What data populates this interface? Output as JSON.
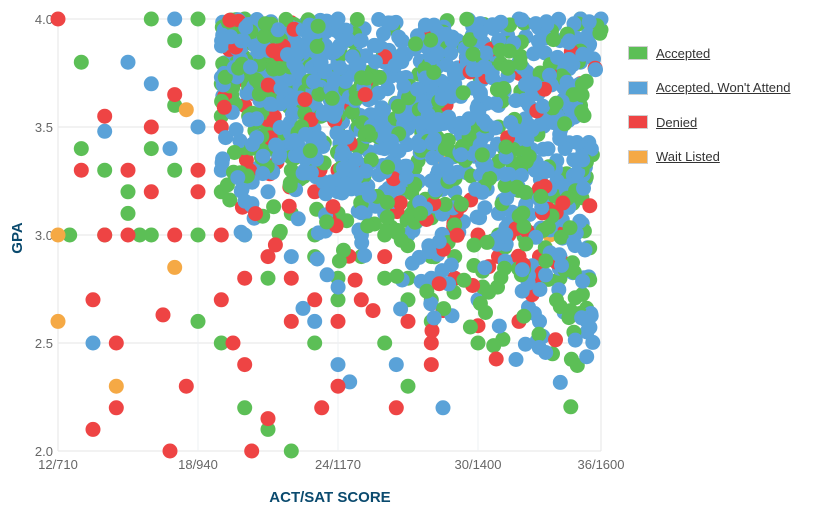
{
  "chart_data": {
    "type": "scatter",
    "title": "",
    "xlabel": "ACT/SAT SCORE",
    "ylabel": "GPA",
    "xlim": [
      12,
      36
    ],
    "ylim": [
      2.0,
      4.0
    ],
    "x_ticks": [
      "12/710",
      "18/940",
      "24/1170",
      "30/1400",
      "36/1600"
    ],
    "y_ticks": [
      "2.0",
      "2.5",
      "3.0",
      "3.5",
      "4.0"
    ],
    "grid": true,
    "legend_position": "right",
    "series": [
      {
        "name": "Accepted",
        "color": "#5cbf56",
        "points": [
          [
            13,
            3.8
          ],
          [
            17,
            3.6
          ],
          [
            19,
            3.55
          ],
          [
            20,
            3.4
          ],
          [
            21,
            3.3
          ],
          [
            22,
            3.1
          ],
          [
            23,
            3.0
          ],
          [
            25,
            2.9
          ],
          [
            26,
            2.8
          ],
          [
            27,
            2.7
          ],
          [
            28,
            2.6
          ],
          [
            29,
            2.8
          ],
          [
            30,
            2.5
          ],
          [
            31,
            3.5
          ],
          [
            32,
            3.3
          ],
          [
            33,
            3.2
          ],
          [
            34,
            2.8
          ],
          [
            35,
            4.0
          ],
          [
            36,
            3.95
          ],
          [
            24,
            3.5
          ],
          [
            22,
            3.7
          ],
          [
            20,
            3.9
          ],
          [
            19,
            3.2
          ],
          [
            18,
            3.0
          ],
          [
            16,
            3.0
          ],
          [
            15,
            3.1
          ],
          [
            14,
            3.3
          ],
          [
            13,
            3.4
          ],
          [
            14,
            3.0
          ],
          [
            17,
            3.3
          ],
          [
            18,
            2.6
          ],
          [
            19,
            2.5
          ],
          [
            20,
            2.2
          ],
          [
            21,
            2.1
          ],
          [
            22,
            2.0
          ],
          [
            23,
            2.5
          ],
          [
            24,
            2.8
          ],
          [
            26,
            2.5
          ],
          [
            27,
            2.3
          ],
          [
            28,
            2.7
          ],
          [
            29,
            3.1
          ],
          [
            30,
            3.5
          ],
          [
            31,
            3.0
          ],
          [
            33,
            3.5
          ],
          [
            34,
            3.5
          ],
          [
            20,
            3.0
          ],
          [
            21,
            2.8
          ],
          [
            25,
            3.0
          ],
          [
            26,
            3.0
          ],
          [
            27,
            3.0
          ],
          [
            28,
            2.9
          ],
          [
            29,
            2.9
          ],
          [
            24,
            3.1
          ],
          [
            22,
            3.3
          ],
          [
            23,
            3.6
          ],
          [
            21,
            3.5
          ],
          [
            25,
            3.7
          ],
          [
            26,
            3.8
          ],
          [
            28,
            3.9
          ],
          [
            30,
            3.9
          ],
          [
            32,
            3.8
          ],
          [
            34,
            3.7
          ],
          [
            35,
            3.6
          ],
          [
            19,
            3.7
          ],
          [
            18,
            3.8
          ],
          [
            17,
            3.9
          ],
          [
            16,
            4.0
          ],
          [
            18,
            4.0
          ],
          [
            20,
            4.0
          ],
          [
            15,
            3.2
          ],
          [
            16,
            3.4
          ],
          [
            12.5,
            3.0
          ],
          [
            15.5,
            3.0
          ],
          [
            23,
            2.9
          ],
          [
            24,
            2.7
          ],
          [
            27,
            2.8
          ]
        ]
      },
      {
        "name": "Accepted, Won't Attend",
        "color": "#5aa2d8",
        "points": [
          [
            14,
            3.48
          ],
          [
            13.5,
            2.5
          ],
          [
            15,
            3.8
          ],
          [
            16,
            3.7
          ],
          [
            16.8,
            3.4
          ],
          [
            17,
            4.0
          ],
          [
            18,
            3.5
          ],
          [
            19,
            3.3
          ],
          [
            20,
            3.0
          ],
          [
            21,
            3.2
          ],
          [
            22,
            2.9
          ],
          [
            23,
            2.6
          ],
          [
            24,
            2.4
          ],
          [
            25,
            3.3
          ],
          [
            26,
            3.5
          ],
          [
            27,
            3.0
          ],
          [
            28,
            2.8
          ],
          [
            29,
            3.2
          ],
          [
            30,
            3.4
          ],
          [
            31,
            3.6
          ],
          [
            32,
            3.8
          ],
          [
            33,
            3.5
          ],
          [
            34,
            2.9
          ],
          [
            35,
            4.0
          ],
          [
            33,
            2.6
          ],
          [
            30,
            2.7
          ],
          [
            28.5,
            2.2
          ],
          [
            24.5,
            2.32
          ],
          [
            22.5,
            2.66
          ],
          [
            26.5,
            2.4
          ],
          [
            21,
            3.6
          ],
          [
            22,
            3.8
          ],
          [
            23,
            3.9
          ],
          [
            24,
            4.0
          ],
          [
            25,
            3.9
          ],
          [
            26,
            3.8
          ],
          [
            27,
            3.7
          ],
          [
            28,
            3.6
          ],
          [
            29,
            3.7
          ],
          [
            30,
            3.8
          ],
          [
            31,
            3.9
          ],
          [
            32,
            4.0
          ],
          [
            33,
            3.9
          ],
          [
            34,
            3.8
          ],
          [
            35,
            3.7
          ],
          [
            24,
            3.6
          ],
          [
            25,
            3.5
          ],
          [
            26,
            3.4
          ],
          [
            27,
            3.3
          ],
          [
            28,
            3.4
          ],
          [
            29,
            3.5
          ],
          [
            30,
            3.6
          ],
          [
            31,
            3.3
          ],
          [
            25,
            3.2
          ],
          [
            26,
            3.2
          ],
          [
            27,
            3.5
          ],
          [
            28,
            3.7
          ],
          [
            24,
            3.8
          ],
          [
            23,
            3.7
          ],
          [
            22,
            3.5
          ],
          [
            21,
            3.4
          ],
          [
            23,
            3.3
          ],
          [
            24,
            3.2
          ],
          [
            25,
            3.0
          ],
          [
            26,
            3.1
          ],
          [
            27,
            3.2
          ],
          [
            29,
            3.0
          ],
          [
            30,
            3.2
          ],
          [
            31,
            3.1
          ],
          [
            32,
            3.5
          ],
          [
            33,
            3.7
          ],
          [
            34,
            3.9
          ],
          [
            36,
            4.0
          ],
          [
            35,
            3.8
          ],
          [
            34,
            3.6
          ]
        ]
      },
      {
        "name": "Denied",
        "color": "#ee4444",
        "points": [
          [
            12,
            4.0
          ],
          [
            13,
            3.3
          ],
          [
            14,
            3.55
          ],
          [
            15,
            3.3
          ],
          [
            16,
            3.5
          ],
          [
            17,
            3.65
          ],
          [
            18,
            3.2
          ],
          [
            19,
            3.0
          ],
          [
            20,
            2.8
          ],
          [
            21,
            2.9
          ],
          [
            22,
            2.8
          ],
          [
            23,
            2.7
          ],
          [
            24,
            2.6
          ],
          [
            25,
            2.7
          ],
          [
            26,
            2.9
          ],
          [
            27,
            2.6
          ],
          [
            28,
            2.5
          ],
          [
            29,
            2.8
          ],
          [
            30,
            3.0
          ],
          [
            31,
            2.9
          ],
          [
            32,
            2.6
          ],
          [
            33,
            2.9
          ],
          [
            35,
            3.7
          ],
          [
            13.5,
            2.7
          ],
          [
            13.5,
            2.1
          ],
          [
            14.5,
            2.2
          ],
          [
            14.5,
            2.5
          ],
          [
            16.5,
            2.63
          ],
          [
            16.8,
            2.0
          ],
          [
            17.5,
            2.3
          ],
          [
            19,
            2.7
          ],
          [
            20,
            2.4
          ],
          [
            20.3,
            2.0
          ],
          [
            21,
            2.15
          ],
          [
            22,
            2.6
          ],
          [
            23.3,
            2.2
          ],
          [
            24,
            2.3
          ],
          [
            25.5,
            2.65
          ],
          [
            26.5,
            2.2
          ],
          [
            28,
            2.4
          ],
          [
            28.5,
            2.65
          ],
          [
            30,
            2.58
          ],
          [
            31.5,
            3.0
          ],
          [
            32,
            2.9
          ],
          [
            33,
            2.8
          ],
          [
            19,
            3.5
          ],
          [
            20,
            3.6
          ],
          [
            21,
            3.85
          ],
          [
            22,
            3.5
          ],
          [
            23,
            3.2
          ],
          [
            24,
            3.3
          ],
          [
            18,
            3.3
          ],
          [
            17,
            3.0
          ],
          [
            16,
            3.2
          ],
          [
            15,
            3.0
          ],
          [
            14,
            3.0
          ],
          [
            19.5,
            2.5
          ]
        ]
      },
      {
        "name": "Wait Listed",
        "color": "#f5a945",
        "points": [
          [
            12,
            3.0
          ],
          [
            12,
            2.6
          ],
          [
            14.5,
            2.3
          ],
          [
            17.5,
            3.58
          ],
          [
            17,
            2.85
          ],
          [
            28.5,
            3.35
          ],
          [
            33.5,
            3.0
          ]
        ]
      }
    ]
  },
  "legend": {
    "items": [
      {
        "label": "Accepted",
        "color": "#5cbf56"
      },
      {
        "label": "Accepted, Won't Attend",
        "color": "#5aa2d8"
      },
      {
        "label": "Denied",
        "color": "#ee4444"
      },
      {
        "label": "Wait Listed",
        "color": "#f5a945"
      }
    ]
  },
  "axes": {
    "x_title": "ACT/SAT SCORE",
    "y_title": "GPA",
    "x_ticks": [
      "12/710",
      "18/940",
      "24/1170",
      "30/1400",
      "36/1600"
    ],
    "y_ticks": [
      "4.0",
      "3.5",
      "3.0",
      "2.5",
      "2.0"
    ]
  }
}
